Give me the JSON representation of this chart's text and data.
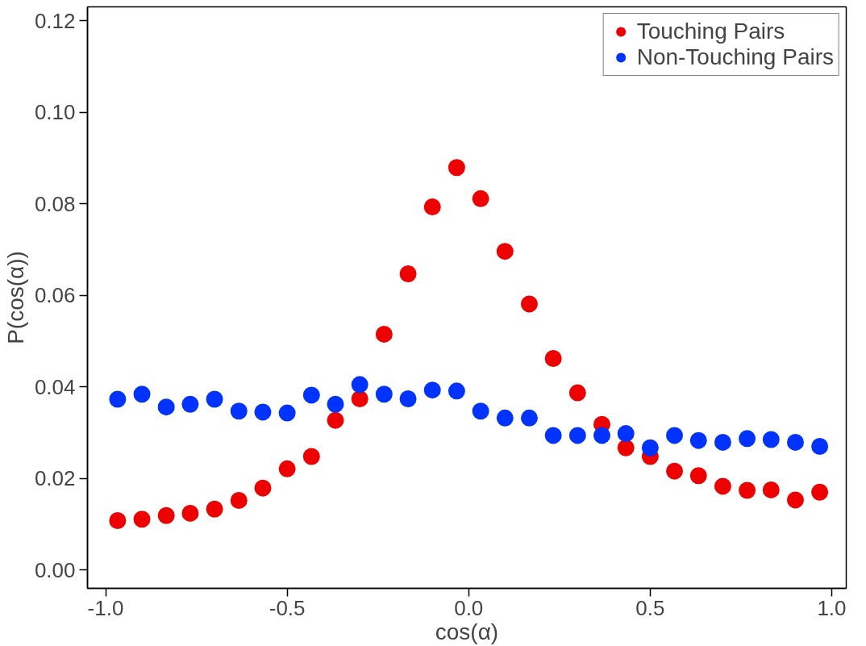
{
  "chart_data": {
    "type": "scatter",
    "xlabel": "cos(α)",
    "ylabel": "P(cos(α))",
    "x": [
      -0.967,
      -0.9,
      -0.833,
      -0.767,
      -0.7,
      -0.633,
      -0.567,
      -0.5,
      -0.433,
      -0.367,
      -0.3,
      -0.233,
      -0.167,
      -0.1,
      -0.033,
      0.033,
      0.1,
      0.167,
      0.233,
      0.3,
      0.367,
      0.433,
      0.5,
      0.567,
      0.633,
      0.7,
      0.767,
      0.833,
      0.9,
      0.967
    ],
    "series": [
      {
        "name": "Touching Pairs",
        "color": "#ee0000",
        "values": [
          0.0108,
          0.0111,
          0.0119,
          0.0124,
          0.0133,
          0.0152,
          0.0179,
          0.0221,
          0.0248,
          0.0327,
          0.0374,
          0.0515,
          0.0647,
          0.0793,
          0.0879,
          0.0811,
          0.0696,
          0.0581,
          0.0462,
          0.0387,
          0.0318,
          0.0267,
          0.0248,
          0.0216,
          0.0206,
          0.0183,
          0.0174,
          0.0175,
          0.0153,
          0.017
        ]
      },
      {
        "name": "Non-Touching Pairs",
        "color": "#0033ff",
        "values": [
          0.0373,
          0.0384,
          0.0356,
          0.0362,
          0.0373,
          0.0347,
          0.0345,
          0.0343,
          0.0382,
          0.0362,
          0.0405,
          0.0384,
          0.0374,
          0.0393,
          0.0391,
          0.0347,
          0.0332,
          0.0332,
          0.0294,
          0.0294,
          0.0294,
          0.0298,
          0.0267,
          0.0294,
          0.0283,
          0.0279,
          0.0287,
          0.0285,
          0.0279,
          0.027
        ]
      }
    ],
    "xlim": [
      -1.05,
      1.04
    ],
    "ylim": [
      -0.004,
      0.123
    ],
    "xticks": [
      {
        "value": -1,
        "label": "-1.0"
      },
      {
        "value": -0.5,
        "label": "-0.5"
      },
      {
        "value": 0,
        "label": "0.0"
      },
      {
        "value": 0.5,
        "label": "0.5"
      },
      {
        "value": 1,
        "label": "1.0"
      }
    ],
    "yticks": [
      {
        "value": 0,
        "label": "0.00"
      },
      {
        "value": 0.02,
        "label": "0.02"
      },
      {
        "value": 0.04,
        "label": "0.04"
      },
      {
        "value": 0.06,
        "label": "0.06"
      },
      {
        "value": 0.08,
        "label": "0.08"
      },
      {
        "value": 0.1,
        "label": "0.10"
      },
      {
        "value": 0.12,
        "label": "0.12"
      }
    ],
    "grid": false,
    "legend": "top right",
    "marker": "circle"
  }
}
